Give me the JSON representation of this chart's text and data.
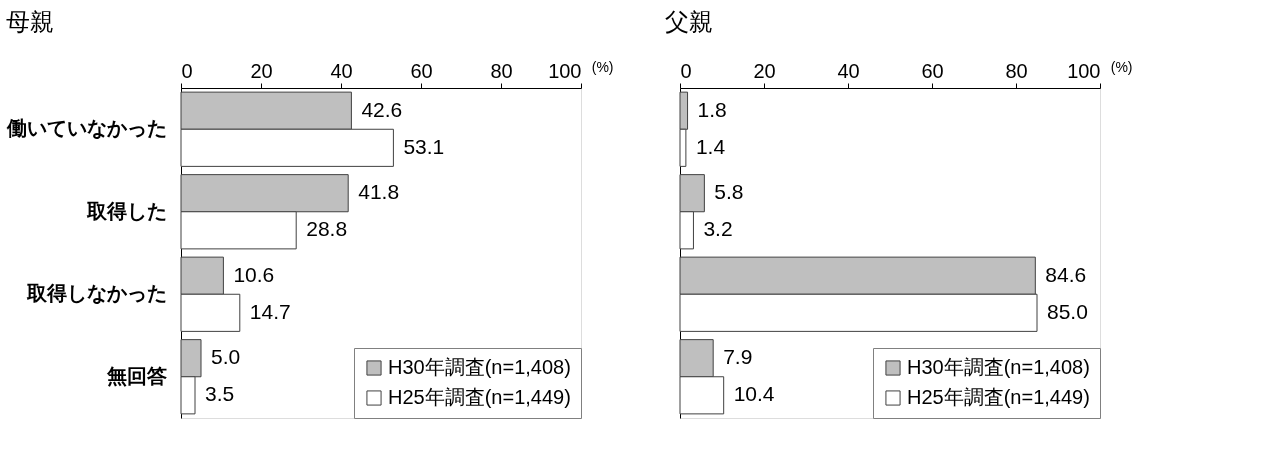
{
  "chart_data": [
    {
      "type": "bar",
      "orientation": "horizontal",
      "title": "母親",
      "xlabel": "(%)",
      "categories": [
        "働いていなかった",
        "取得した",
        "取得しなかった",
        "無回答"
      ],
      "series": [
        {
          "name": "H30年調査(n=1,408)",
          "color": "#bfbfbf",
          "values": [
            42.6,
            41.8,
            10.6,
            5.0
          ],
          "value_labels": [
            "42.6",
            "41.8",
            "10.6",
            "5.0"
          ]
        },
        {
          "name": "H25年調査(n=1,449)",
          "color": "#ffffff",
          "values": [
            53.1,
            28.8,
            14.7,
            3.5
          ],
          "value_labels": [
            "53.1",
            "28.8",
            "14.7",
            "3.5"
          ]
        }
      ],
      "xlim": [
        0,
        100
      ],
      "xticks": [
        0,
        20,
        40,
        60,
        80,
        100
      ],
      "legend": "bottom right",
      "grid": false
    },
    {
      "type": "bar",
      "orientation": "horizontal",
      "title": "父親",
      "xlabel": "(%)",
      "categories": [
        null,
        null,
        null,
        null
      ],
      "series": [
        {
          "name": "H30年調査(n=1,408)",
          "color": "#bfbfbf",
          "values": [
            1.8,
            5.8,
            84.6,
            7.9
          ],
          "value_labels": [
            "1.8",
            "5.8",
            "84.6",
            "7.9"
          ]
        },
        {
          "name": "H25年調査(n=1,449)",
          "color": "#ffffff",
          "values": [
            1.4,
            3.2,
            85.0,
            10.4
          ],
          "value_labels": [
            "1.4",
            "3.2",
            "85.0",
            "10.4"
          ]
        }
      ],
      "xlim": [
        0,
        100
      ],
      "xticks": [
        0,
        20,
        40,
        60,
        80,
        100
      ],
      "legend": "bottom right",
      "grid": false
    }
  ]
}
